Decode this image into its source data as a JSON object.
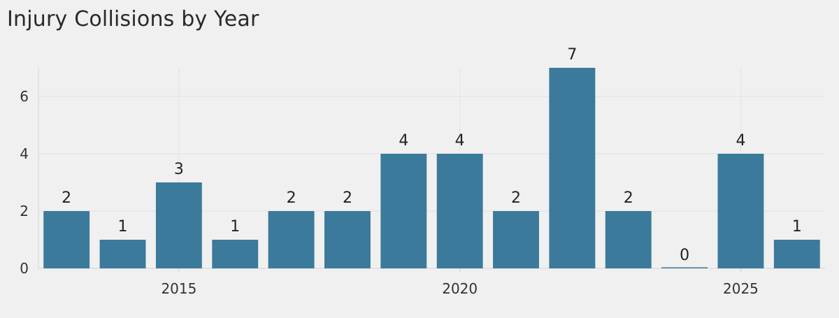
{
  "chart_data": {
    "type": "bar",
    "title": "Injury Collisions by Year",
    "xlabel": "",
    "ylabel": "",
    "x": [
      2013,
      2014,
      2015,
      2016,
      2017,
      2018,
      2019,
      2020,
      2021,
      2022,
      2023,
      2024,
      2025,
      2026
    ],
    "values": [
      2,
      1,
      3,
      1,
      2,
      2,
      4,
      4,
      2,
      7,
      2,
      0,
      4,
      1
    ],
    "xticks": [
      2015,
      2020,
      2025
    ],
    "yticks": [
      0,
      2,
      4,
      6
    ],
    "ylim": [
      0,
      7
    ],
    "xlim": [
      2012.5,
      2026.5
    ],
    "grid": true,
    "bar_color": "#3b7a9b"
  }
}
